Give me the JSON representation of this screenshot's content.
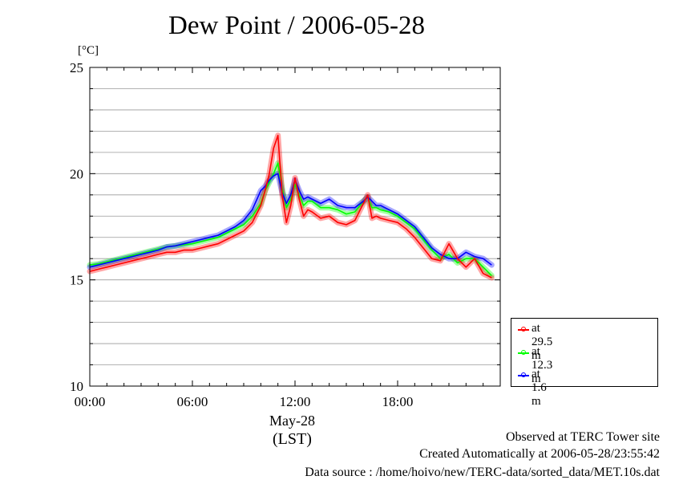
{
  "title": "Dew Point / 2006-05-28",
  "unit_label": "[°C]",
  "x_date_label": "May-28",
  "x_unit_label": "(LST)",
  "footer": {
    "line1": "Observed at TERC Tower site",
    "line2": "Created Automatically at 2006-05-28/23:55:42",
    "line3": "Data source : /home/hoivo/new/TERC-data/sorted_data/MET.10s.dat"
  },
  "chart_data": {
    "type": "line",
    "title": "Dew Point / 2006-05-28",
    "ylabel": "[°C]",
    "xlabel": "(LST)",
    "ylim": [
      10,
      25
    ],
    "xlim": [
      0,
      24
    ],
    "grid": true,
    "legend_position": "right-bottom",
    "y_ticks": [
      "10",
      "15",
      "20",
      "25"
    ],
    "x_ticks": [
      {
        "value": 0,
        "label": "00:00"
      },
      {
        "value": 6,
        "label": "06:00"
      },
      {
        "value": 12,
        "label": "12:00"
      },
      {
        "value": 18,
        "label": "18:00"
      }
    ],
    "x": [
      0,
      0.5,
      1,
      1.5,
      2,
      2.5,
      3,
      3.5,
      4,
      4.5,
      5,
      5.5,
      6,
      6.5,
      7,
      7.5,
      8,
      8.5,
      9,
      9.5,
      10,
      10.25,
      10.5,
      10.75,
      11,
      11.25,
      11.5,
      11.75,
      12,
      12.25,
      12.5,
      12.75,
      13,
      13.5,
      14,
      14.5,
      15,
      15.5,
      16,
      16.25,
      16.5,
      16.75,
      17,
      17.5,
      18,
      18.5,
      19,
      19.5,
      20,
      20.5,
      21,
      21.5,
      22,
      22.5,
      23,
      23.5
    ],
    "series": [
      {
        "name": "at 29.5 m",
        "color": "#ff0000",
        "values": [
          15.4,
          15.5,
          15.6,
          15.7,
          15.8,
          15.9,
          16.0,
          16.1,
          16.2,
          16.3,
          16.3,
          16.4,
          16.4,
          16.5,
          16.6,
          16.7,
          16.9,
          17.1,
          17.3,
          17.7,
          18.5,
          19.2,
          20.0,
          21.2,
          21.8,
          19.0,
          17.7,
          18.5,
          19.8,
          18.8,
          18.0,
          18.3,
          18.2,
          17.9,
          18.0,
          17.7,
          17.6,
          17.8,
          18.6,
          19.0,
          17.9,
          18.0,
          17.9,
          17.8,
          17.7,
          17.4,
          17.0,
          16.5,
          16.0,
          15.9,
          16.7,
          16.0,
          15.6,
          16.0,
          15.3,
          15.1
        ]
      },
      {
        "name": "at 12.3 m",
        "color": "#00ff00",
        "values": [
          15.7,
          15.75,
          15.85,
          15.95,
          16.05,
          16.15,
          16.25,
          16.35,
          16.45,
          16.55,
          16.6,
          16.65,
          16.7,
          16.8,
          16.9,
          17.0,
          17.2,
          17.4,
          17.6,
          18.0,
          18.6,
          19.2,
          19.6,
          20.0,
          20.5,
          19.3,
          18.4,
          18.8,
          19.5,
          19.0,
          18.5,
          18.7,
          18.7,
          18.4,
          18.4,
          18.3,
          18.1,
          18.2,
          18.7,
          18.9,
          18.4,
          18.4,
          18.3,
          18.2,
          18.0,
          17.7,
          17.4,
          16.9,
          16.4,
          16.0,
          16.2,
          15.8,
          16.0,
          16.0,
          15.6,
          15.2
        ]
      },
      {
        "name": "at 1.6 m",
        "color": "#0000ff",
        "values": [
          15.6,
          15.7,
          15.8,
          15.9,
          16.0,
          16.1,
          16.2,
          16.3,
          16.4,
          16.55,
          16.6,
          16.7,
          16.8,
          16.9,
          17.0,
          17.1,
          17.3,
          17.5,
          17.8,
          18.3,
          19.2,
          19.4,
          19.7,
          19.9,
          20.0,
          19.1,
          18.6,
          19.0,
          19.7,
          19.2,
          18.8,
          18.9,
          18.8,
          18.6,
          18.8,
          18.5,
          18.4,
          18.4,
          18.7,
          18.9,
          18.7,
          18.5,
          18.5,
          18.3,
          18.1,
          17.8,
          17.5,
          17.0,
          16.5,
          16.2,
          16.0,
          16.0,
          16.3,
          16.1,
          16.0,
          15.7
        ]
      }
    ]
  }
}
